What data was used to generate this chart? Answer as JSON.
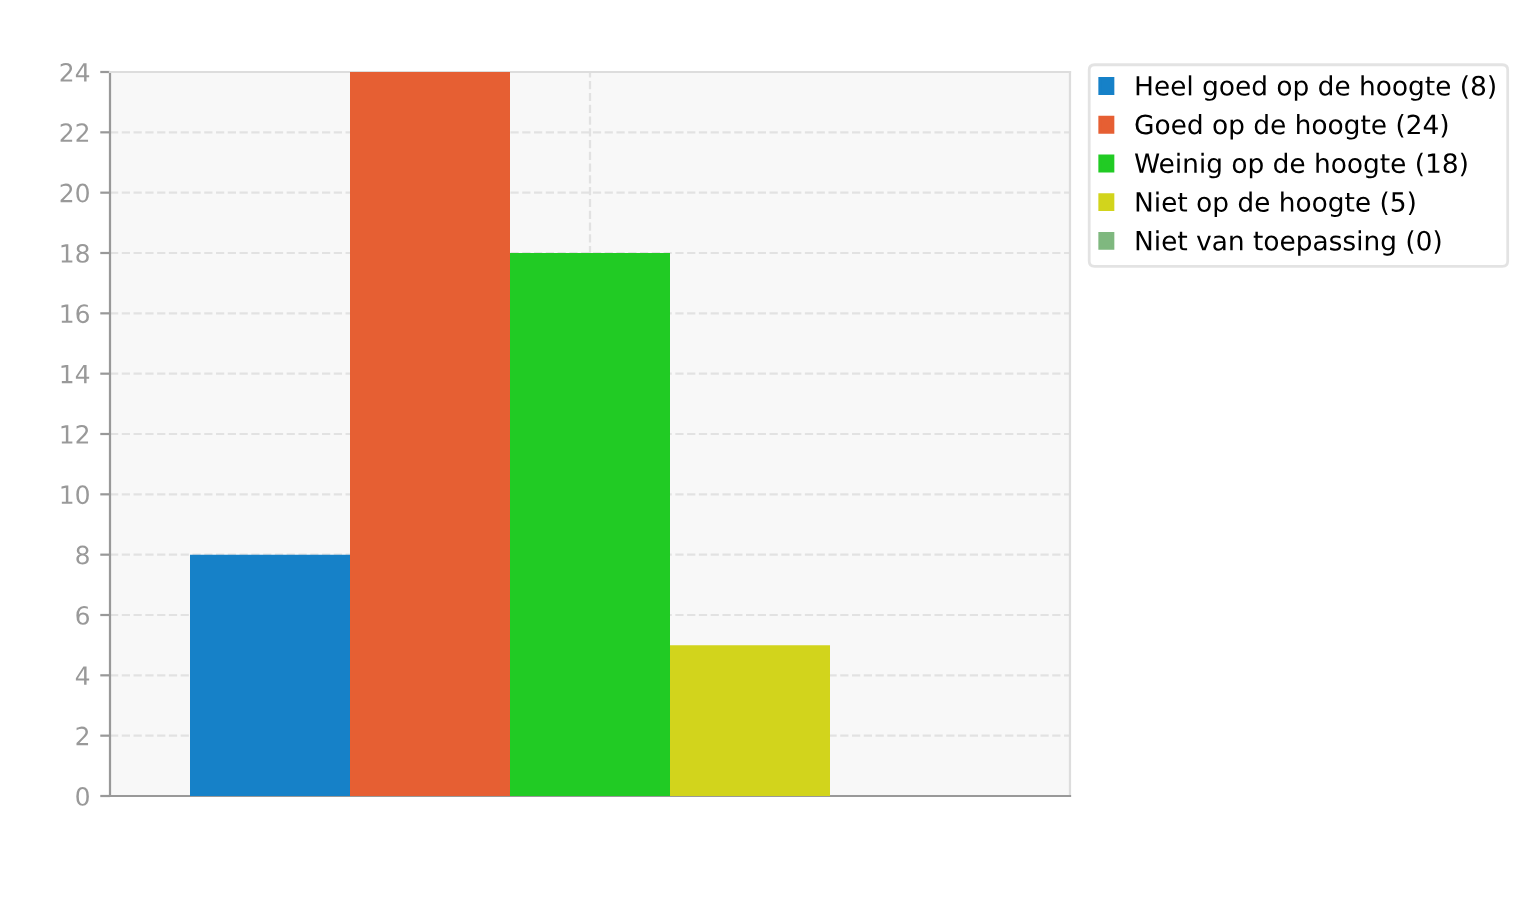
{
  "chart_data": {
    "type": "bar",
    "categories": [
      null
    ],
    "series": [
      {
        "name": "Heel goed op de hoogte (8)",
        "color": "#1681c8",
        "values": [
          8
        ]
      },
      {
        "name": "Goed op de hoogte (24)",
        "color": "#e65f33",
        "values": [
          24
        ]
      },
      {
        "name": "Weinig op de hoogte (18)",
        "color": "#21cb24",
        "values": [
          18
        ]
      },
      {
        "name": "Niet op de hoogte (5)",
        "color": "#d2d41c",
        "values": [
          5
        ]
      },
      {
        "name": "Niet van toepassing (0)",
        "color": "#7fb87f",
        "values": [
          0
        ]
      }
    ],
    "ylim": [
      0,
      24
    ],
    "yticks": [
      0,
      2,
      4,
      6,
      8,
      10,
      12,
      14,
      16,
      18,
      20,
      22,
      24
    ],
    "grid": true,
    "legend": "top right"
  }
}
